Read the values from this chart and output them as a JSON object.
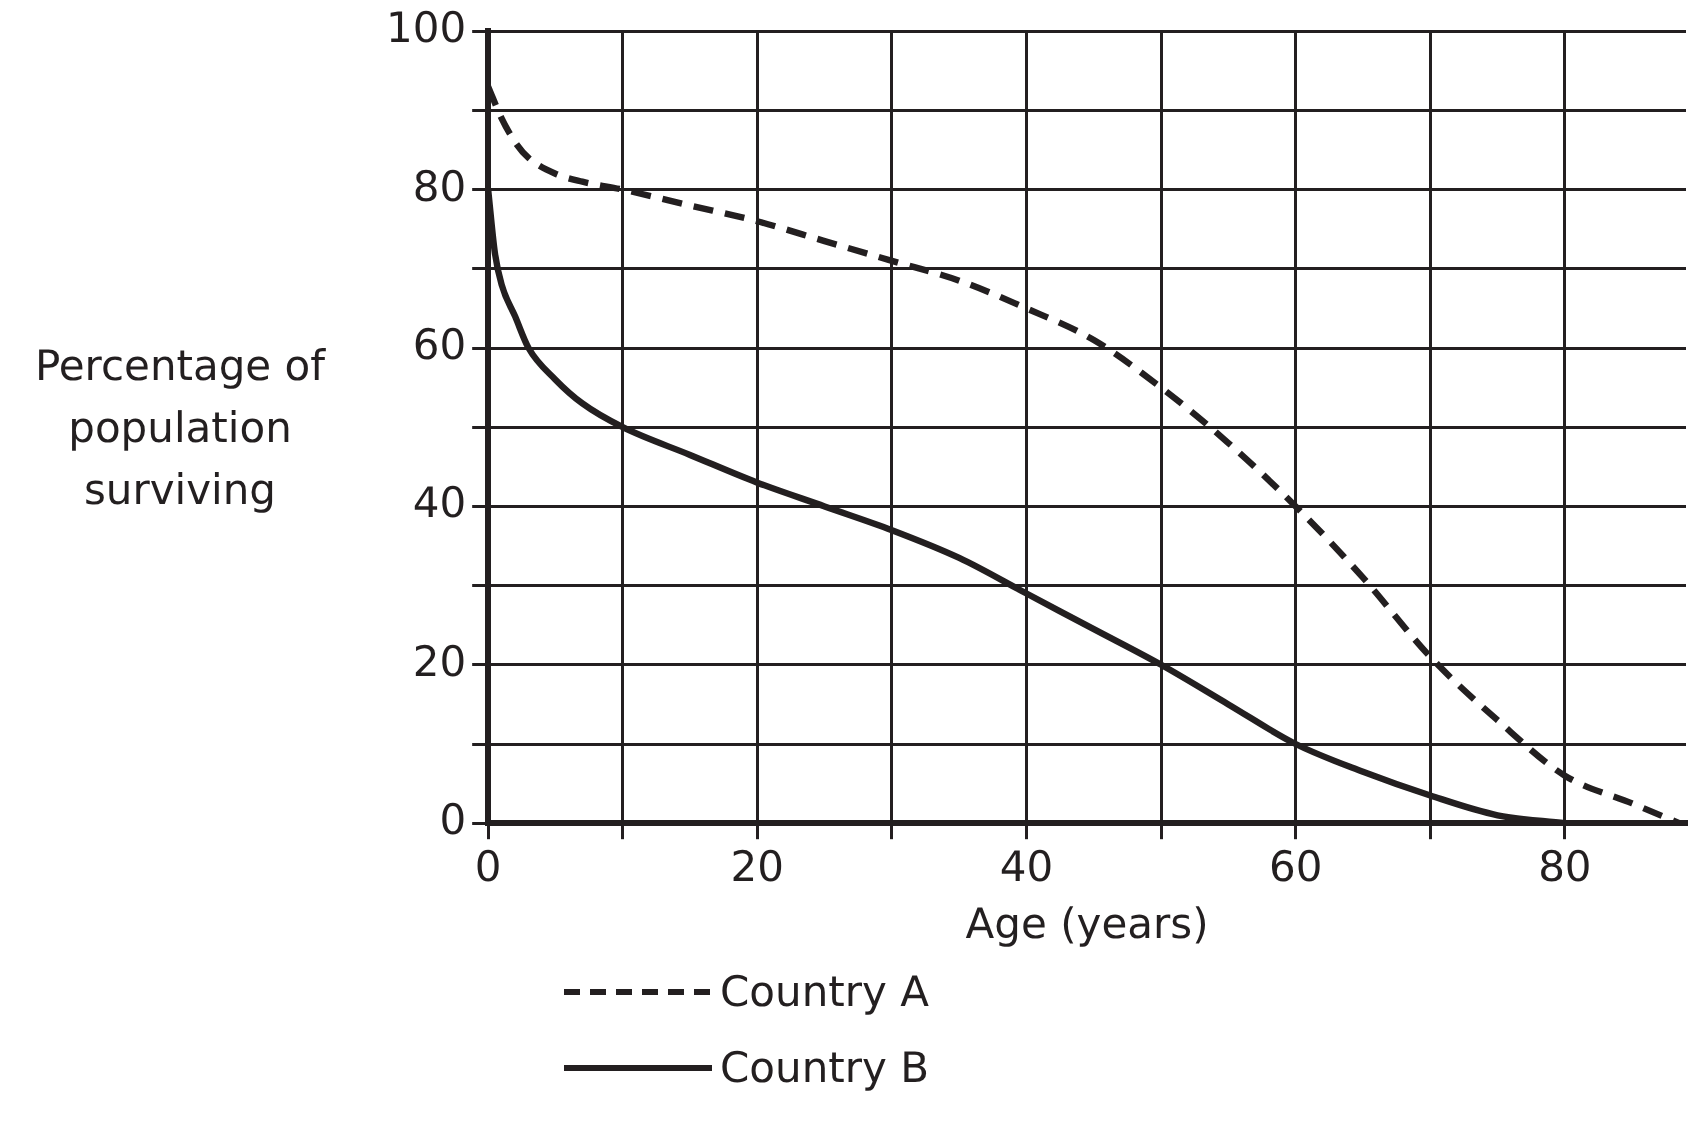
{
  "chart_data": {
    "type": "line",
    "xlabel": "Age (years)",
    "ylabel": "Percentage of population surviving",
    "xlim": [
      0,
      89
    ],
    "xticks": [
      0,
      {
        "value": 10,
        "label": null
      },
      20,
      {
        "value": 30,
        "label": null
      },
      40,
      {
        "value": 50,
        "label": null
      },
      60,
      {
        "value": 70,
        "label": null
      },
      80
    ],
    "ylim": [
      0,
      100
    ],
    "yticks": [
      0,
      {
        "value": 10,
        "label": null
      },
      20,
      {
        "value": 30,
        "label": null
      },
      40,
      {
        "value": 50,
        "label": null
      },
      60,
      {
        "value": 70,
        "label": null
      },
      80,
      {
        "value": 90,
        "label": null
      },
      100
    ],
    "grid": true,
    "legend": "bottom",
    "marker": "none",
    "series": [
      {
        "name": "Country A",
        "color": "#231f20",
        "line_style": "dashed",
        "x": [
          0,
          1,
          2,
          3,
          5,
          7,
          10,
          15,
          20,
          25,
          30,
          35,
          40,
          45,
          50,
          55,
          60,
          65,
          70,
          75,
          80,
          85,
          88.5
        ],
        "values": [
          93,
          89,
          86,
          84,
          82,
          81,
          80,
          78,
          76,
          73.5,
          71,
          68.5,
          65,
          61,
          55,
          48,
          40,
          31,
          21,
          13,
          6,
          2.5,
          0
        ]
      },
      {
        "name": "Country B",
        "color": "#231f20",
        "line_style": "solid",
        "x": [
          0,
          0.5,
          1,
          2,
          3,
          5,
          7,
          10,
          15,
          20,
          25,
          30,
          35,
          40,
          45,
          50,
          55,
          60,
          65,
          70,
          75,
          80
        ],
        "values": [
          80,
          72,
          68,
          64,
          60,
          56,
          53,
          50,
          46.5,
          43,
          40,
          37,
          33.5,
          29,
          24.5,
          20,
          15,
          10,
          6.5,
          3.5,
          1,
          0
        ]
      }
    ]
  }
}
